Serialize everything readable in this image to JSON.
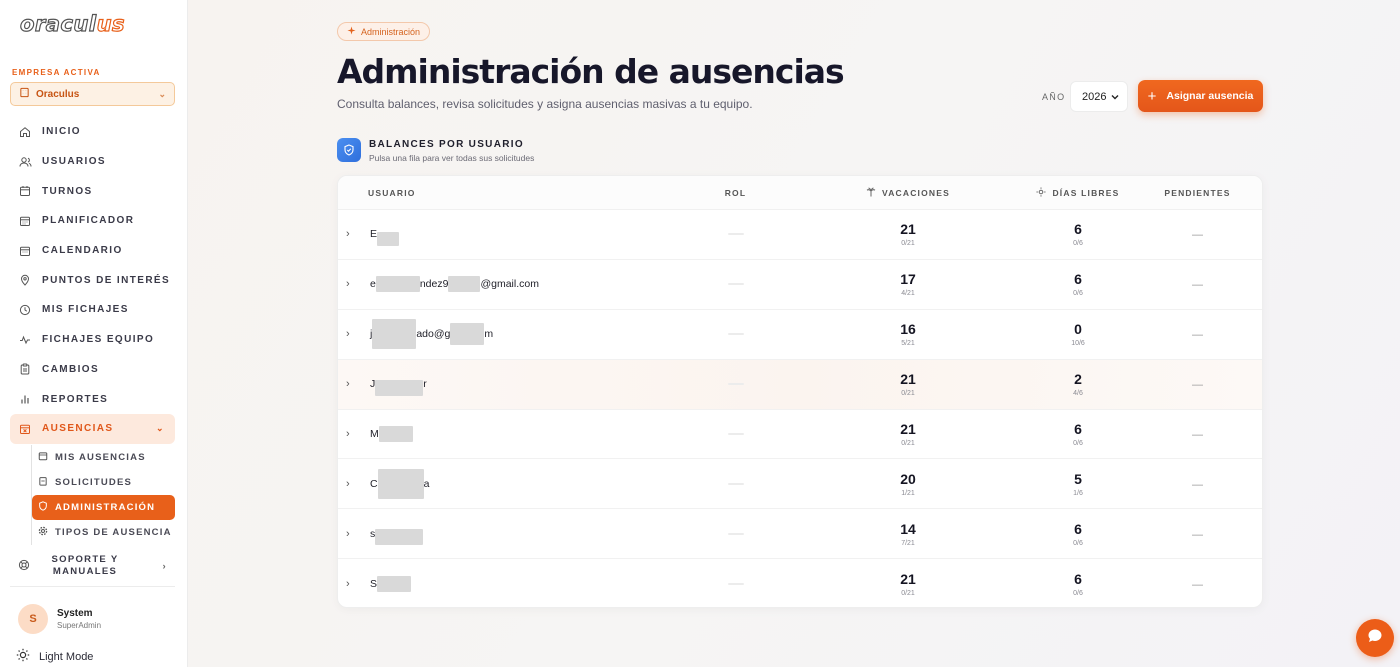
{
  "app": {
    "logo_main": "oracul",
    "logo_accent": "us"
  },
  "sidebar": {
    "company_label": "EMPRESA ACTIVA",
    "company_value": "Oraculus",
    "items": [
      {
        "label": "INICIO",
        "icon": "home-icon"
      },
      {
        "label": "USUARIOS",
        "icon": "users-icon"
      },
      {
        "label": "TURNOS",
        "icon": "calendar-icon"
      },
      {
        "label": "PLANIFICADOR",
        "icon": "calendar-grid-icon"
      },
      {
        "label": "CALENDARIO",
        "icon": "calendar-icon"
      },
      {
        "label": "PUNTOS DE INTERÉS",
        "icon": "map-pin-icon"
      },
      {
        "label": "MIS FICHAJES",
        "icon": "clock-icon"
      },
      {
        "label": "FICHAJES EQUIPO",
        "icon": "activity-icon"
      },
      {
        "label": "CAMBIOS",
        "icon": "clipboard-icon"
      },
      {
        "label": "REPORTES",
        "icon": "bar-chart-icon"
      },
      {
        "label": "AUSENCIAS",
        "icon": "calendar-x-icon"
      }
    ],
    "sub_items": [
      {
        "label": "MIS AUSENCIAS",
        "icon": "calendar-icon"
      },
      {
        "label": "SOLICITUDES",
        "icon": "clipboard-icon"
      },
      {
        "label": "ADMINISTRACIÓN",
        "icon": "shield-icon"
      },
      {
        "label": "TIPOS DE AUSENCIA",
        "icon": "gear-icon"
      }
    ],
    "support_label": "SOPORTE Y MANUALES",
    "user": {
      "initial": "S",
      "name": "System",
      "role": "SuperAdmin"
    },
    "theme_label": "Light Mode"
  },
  "header": {
    "badge": "Administración",
    "title": "Administración de ausencias",
    "subtitle": "Consulta balances, revisa solicitudes y asigna ausencias masivas a tu equipo.",
    "year_label": "AÑO",
    "year_value": "2026",
    "assign_button": "Asignar ausencia"
  },
  "section": {
    "title": "BALANCES POR USUARIO",
    "subtitle": "Pulsa una fila para ver todas sus solicitudes"
  },
  "table": {
    "columns": {
      "user": "USUARIO",
      "rol": "ROL",
      "vac": "VACACIONES",
      "dias": "DÍAS LIBRES",
      "pend": "PENDIENTES"
    },
    "rows": [
      {
        "user_pre": "E",
        "user_post": "",
        "vac": "21",
        "vac_sub": "0/21",
        "dias": "6",
        "dias_sub": "0/6",
        "pend": "—"
      },
      {
        "user_pre": "e",
        "user_mid": "ndez9",
        "user_post": "@gmail.com",
        "vac": "17",
        "vac_sub": "4/21",
        "dias": "6",
        "dias_sub": "0/6",
        "pend": "—"
      },
      {
        "user_pre": "j",
        "user_mid": "ado@g",
        "user_post": "m",
        "vac": "16",
        "vac_sub": "5/21",
        "dias": "0",
        "dias_sub": "10/6",
        "pend": "—"
      },
      {
        "user_pre": "J",
        "user_post": "r",
        "vac": "21",
        "vac_sub": "0/21",
        "dias": "2",
        "dias_sub": "4/6",
        "pend": "—"
      },
      {
        "user_pre": "M",
        "user_post": "",
        "vac": "21",
        "vac_sub": "0/21",
        "dias": "6",
        "dias_sub": "0/6",
        "pend": "—"
      },
      {
        "user_pre": "C",
        "user_post": "a",
        "vac": "20",
        "vac_sub": "1/21",
        "dias": "5",
        "dias_sub": "1/6",
        "pend": "—"
      },
      {
        "user_pre": "s",
        "user_post": "",
        "vac": "14",
        "vac_sub": "7/21",
        "dias": "6",
        "dias_sub": "0/6",
        "pend": "—"
      },
      {
        "user_pre": "S",
        "user_post": "",
        "vac": "21",
        "vac_sub": "0/21",
        "dias": "6",
        "dias_sub": "0/6",
        "pend": "—"
      }
    ]
  },
  "colors": {
    "accent": "#e8601a",
    "accent_soft": "#fde9dd",
    "info": "#3b7de6"
  }
}
